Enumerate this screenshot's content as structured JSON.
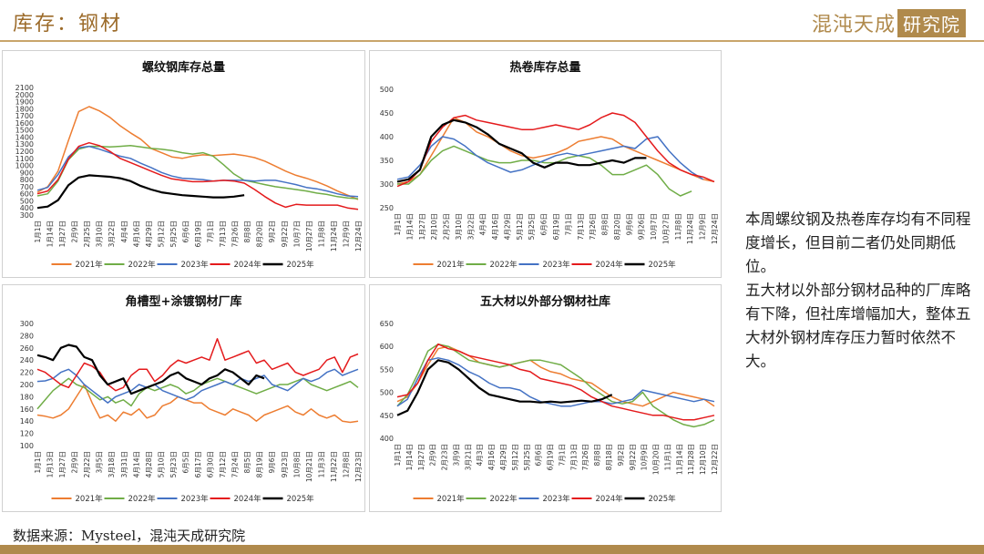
{
  "header": {
    "title": "库存：钢材",
    "logo_text": "混沌天成",
    "logo_box": "研究院"
  },
  "summary": {
    "paragraph1": "本周螺纹钢及热卷库存均有不同程度增长，但目前二者仍处同期低位。",
    "paragraph2": "五大材以外部分钢材品种的厂库略有下降，但社库增幅加大，整体五大材外钢材库存压力暂时依然不大。"
  },
  "footer": {
    "source": "数据来源：Mysteel，混沌天成研究院"
  },
  "colors": {
    "accent": "#b08a4c",
    "2021年": "#ed7d31",
    "2022年": "#70ad47",
    "2023年": "#4472c4",
    "2024年": "#e41a1c",
    "2025年": "#000000"
  },
  "chart_data": [
    {
      "type": "line",
      "title": "螺纹钢库存总量",
      "ylim": [
        300,
        2100
      ],
      "yticks": [
        300,
        400,
        500,
        600,
        700,
        800,
        900,
        1000,
        1100,
        1200,
        1300,
        1400,
        1500,
        1600,
        1700,
        1800,
        1900,
        2000,
        2100
      ],
      "xticks": [
        "1月1日",
        "1月14日",
        "1月27日",
        "2月9日",
        "2月25日",
        "3月10日",
        "3月22日",
        "4月4日",
        "4月16日",
        "4月29日",
        "5月12日",
        "5月25日",
        "6月6日",
        "6月19日",
        "7月1日",
        "7月13日",
        "7月26日",
        "8月8日",
        "8月20日",
        "9月2日",
        "9月22日",
        "10月7日",
        "10月27日",
        "11月8日",
        "11月24日",
        "12月9日",
        "12月24日"
      ],
      "legend": [
        "2021年",
        "2022年",
        "2023年",
        "2024年",
        "2025年"
      ],
      "legend_position": "bottom",
      "series": [
        {
          "name": "2021年",
          "values": [
            620,
            700,
            920,
            1350,
            1760,
            1830,
            1770,
            1680,
            1560,
            1460,
            1370,
            1240,
            1180,
            1120,
            1100,
            1130,
            1150,
            1140,
            1150,
            1160,
            1140,
            1110,
            1060,
            990,
            920,
            860,
            820,
            770,
            710,
            640,
            580,
            520
          ]
        },
        {
          "name": "2022年",
          "values": [
            570,
            600,
            780,
            1080,
            1230,
            1270,
            1270,
            1260,
            1270,
            1280,
            1260,
            1240,
            1230,
            1210,
            1180,
            1160,
            1180,
            1130,
            1010,
            880,
            790,
            760,
            730,
            700,
            680,
            660,
            640,
            610,
            590,
            560,
            540,
            530
          ]
        },
        {
          "name": "2023年",
          "values": [
            650,
            690,
            870,
            1120,
            1250,
            1270,
            1230,
            1180,
            1130,
            1100,
            1030,
            970,
            900,
            850,
            820,
            810,
            800,
            780,
            790,
            790,
            790,
            780,
            790,
            790,
            760,
            730,
            690,
            670,
            640,
            600,
            570,
            560
          ]
        },
        {
          "name": "2024年",
          "values": [
            600,
            640,
            800,
            1090,
            1270,
            1320,
            1280,
            1200,
            1100,
            1040,
            980,
            920,
            860,
            810,
            790,
            770,
            770,
            780,
            790,
            780,
            750,
            660,
            560,
            470,
            410,
            450,
            440,
            440,
            440,
            440,
            400,
            380
          ]
        },
        {
          "name": "2025年",
          "values": [
            400,
            420,
            510,
            720,
            830,
            860,
            850,
            840,
            820,
            780,
            710,
            660,
            620,
            600,
            580,
            570,
            560,
            550,
            550,
            560,
            580
          ]
        }
      ]
    },
    {
      "type": "line",
      "title": "热卷库存总量",
      "ylim": [
        250,
        500
      ],
      "yticks": [
        250,
        300,
        350,
        400,
        450,
        500
      ],
      "xticks": [
        "1月1日",
        "1月14日",
        "1月27日",
        "2月10日",
        "2月25日",
        "3月10日",
        "3月22日",
        "4月4日",
        "4月16日",
        "4月29日",
        "5月12日",
        "5月25日",
        "6月6日",
        "6月19日",
        "7月1日",
        "7月13日",
        "7月26日",
        "8月8日",
        "8月20日",
        "9月6日",
        "9月26日",
        "10月7日",
        "10月27日",
        "11月8日",
        "11月24日",
        "12月9日",
        "12月24日"
      ],
      "legend": [
        "2021年",
        "2022年",
        "2023年",
        "2024年",
        "2025年"
      ],
      "legend_position": "bottom",
      "series": [
        {
          "name": "2021年",
          "values": [
            300,
            305,
            320,
            360,
            400,
            440,
            430,
            410,
            400,
            385,
            370,
            360,
            355,
            360,
            365,
            375,
            390,
            395,
            400,
            395,
            380,
            370,
            360,
            350,
            340,
            330,
            320,
            310,
            305
          ]
        },
        {
          "name": "2022年",
          "values": [
            300,
            300,
            320,
            350,
            370,
            380,
            370,
            360,
            350,
            345,
            345,
            350,
            350,
            345,
            345,
            355,
            360,
            355,
            340,
            320,
            320,
            330,
            340,
            320,
            290,
            275,
            285
          ]
        },
        {
          "name": "2023年",
          "values": [
            310,
            315,
            340,
            380,
            400,
            395,
            380,
            360,
            345,
            335,
            325,
            330,
            340,
            350,
            360,
            365,
            360,
            365,
            370,
            375,
            380,
            375,
            395,
            400,
            370,
            345,
            325,
            310
          ]
        },
        {
          "name": "2024年",
          "values": [
            295,
            305,
            330,
            390,
            420,
            440,
            445,
            435,
            430,
            425,
            420,
            415,
            415,
            420,
            425,
            420,
            415,
            425,
            440,
            450,
            445,
            430,
            400,
            370,
            345,
            330,
            320,
            315,
            305
          ]
        },
        {
          "name": "2025年",
          "values": [
            305,
            310,
            330,
            400,
            425,
            435,
            430,
            420,
            405,
            385,
            375,
            365,
            345,
            335,
            345,
            345,
            340,
            340,
            345,
            350,
            345,
            355,
            355
          ]
        }
      ]
    },
    {
      "type": "line",
      "title": "角槽型+涂镀钢材厂库",
      "ylim": [
        100,
        300
      ],
      "yticks": [
        100,
        120,
        140,
        160,
        180,
        200,
        220,
        240,
        260,
        280,
        300
      ],
      "xticks": [
        "1月1日",
        "1月13日",
        "1月27日",
        "2月9日",
        "2月22日",
        "3月5日",
        "3月18日",
        "3月31日",
        "4月14日",
        "4月28日",
        "5月10日",
        "5月23日",
        "6月5日",
        "6月17日",
        "6月30日",
        "7月12日",
        "7月24日",
        "8月5日",
        "8月19日",
        "9月6日",
        "9月23日",
        "10月8日",
        "10月21日",
        "11月3日",
        "11月22日",
        "12月8日",
        "12月23日"
      ],
      "legend": [
        "2021年",
        "2022年",
        "2023年",
        "2024年",
        "2025年"
      ],
      "legend_position": "bottom",
      "series": [
        {
          "name": "2021年",
          "values": [
            150,
            148,
            145,
            150,
            160,
            180,
            200,
            170,
            145,
            150,
            140,
            155,
            150,
            160,
            145,
            150,
            165,
            170,
            180,
            175,
            170,
            170,
            160,
            155,
            150,
            160,
            155,
            150,
            140,
            150,
            155,
            160,
            165,
            155,
            150,
            160,
            150,
            145,
            150,
            140,
            138,
            140
          ]
        },
        {
          "name": "2022年",
          "values": [
            160,
            175,
            190,
            200,
            210,
            200,
            195,
            185,
            175,
            180,
            170,
            175,
            165,
            185,
            195,
            190,
            195,
            200,
            195,
            185,
            190,
            200,
            205,
            210,
            205,
            200,
            195,
            190,
            185,
            190,
            195,
            200,
            200,
            205,
            210,
            200,
            195,
            190,
            195,
            200,
            205,
            195
          ]
        },
        {
          "name": "2023年",
          "values": [
            205,
            206,
            210,
            220,
            225,
            215,
            200,
            190,
            180,
            170,
            180,
            185,
            190,
            200,
            195,
            200,
            190,
            185,
            180,
            175,
            180,
            190,
            195,
            200,
            205,
            200,
            210,
            205,
            210,
            215,
            200,
            195,
            190,
            200,
            210,
            205,
            210,
            220,
            225,
            215,
            220,
            225
          ]
        },
        {
          "name": "2024年",
          "values": [
            225,
            220,
            210,
            200,
            195,
            215,
            235,
            230,
            220,
            200,
            190,
            195,
            215,
            225,
            225,
            205,
            215,
            230,
            240,
            235,
            240,
            245,
            240,
            275,
            240,
            245,
            250,
            255,
            235,
            240,
            225,
            230,
            235,
            220,
            215,
            220,
            225,
            240,
            245,
            220,
            245,
            250
          ]
        },
        {
          "name": "2025年",
          "values": [
            248,
            245,
            240,
            260,
            265,
            262,
            245,
            240,
            215,
            200,
            205,
            210,
            185,
            190,
            195,
            200,
            205,
            215,
            220,
            210,
            205,
            200,
            210,
            215,
            225,
            220,
            210,
            200,
            215,
            210
          ]
        }
      ]
    },
    {
      "type": "line",
      "title": "五大材以外部分钢材社库",
      "ylim": [
        400,
        650
      ],
      "yticks": [
        400,
        450,
        500,
        550,
        600,
        650
      ],
      "xticks": [
        "1月1日",
        "1月14日",
        "1月27日",
        "2月9日",
        "2月23日",
        "3月9日",
        "3月21日",
        "4月3日",
        "4月16日",
        "4月29日",
        "5月12日",
        "5月25日",
        "6月6日",
        "6月19日",
        "7月1日",
        "7月13日",
        "7月26日",
        "8月8日",
        "8月18日",
        "9月2日",
        "9月22日",
        "10月9日",
        "10月20日",
        "11月1日",
        "11月14日",
        "11月28日",
        "12月10日",
        "12月22日"
      ],
      "legend": [
        "2021年",
        "2022年",
        "2023年",
        "2024年",
        "2025年"
      ],
      "legend_position": "bottom",
      "series": [
        {
          "name": "2021年",
          "values": [
            480,
            490,
            520,
            560,
            595,
            600,
            590,
            580,
            565,
            560,
            555,
            560,
            565,
            570,
            555,
            545,
            540,
            530,
            525,
            520,
            505,
            490,
            480,
            475,
            470,
            480,
            490,
            500,
            495,
            490,
            485,
            470
          ]
        },
        {
          "name": "2022年",
          "values": [
            470,
            495,
            540,
            590,
            605,
            600,
            585,
            570,
            565,
            560,
            555,
            560,
            565,
            570,
            570,
            565,
            560,
            545,
            530,
            510,
            495,
            480,
            475,
            480,
            500,
            470,
            455,
            440,
            430,
            425,
            430,
            440
          ]
        },
        {
          "name": "2023年",
          "values": [
            470,
            485,
            530,
            570,
            575,
            570,
            560,
            545,
            535,
            520,
            510,
            510,
            505,
            490,
            480,
            475,
            470,
            470,
            475,
            480,
            480,
            475,
            480,
            485,
            505,
            500,
            495,
            490,
            485,
            480,
            485,
            480
          ]
        },
        {
          "name": "2024年",
          "values": [
            490,
            495,
            520,
            570,
            605,
            595,
            590,
            580,
            575,
            570,
            565,
            560,
            550,
            545,
            530,
            525,
            520,
            515,
            505,
            490,
            480,
            470,
            465,
            460,
            455,
            450,
            450,
            445,
            440,
            440,
            445,
            450
          ]
        },
        {
          "name": "2025年",
          "values": [
            450,
            460,
            500,
            550,
            570,
            565,
            550,
            530,
            510,
            495,
            490,
            485,
            480,
            480,
            478,
            480,
            478,
            480,
            482,
            480,
            485,
            495
          ]
        }
      ]
    }
  ]
}
